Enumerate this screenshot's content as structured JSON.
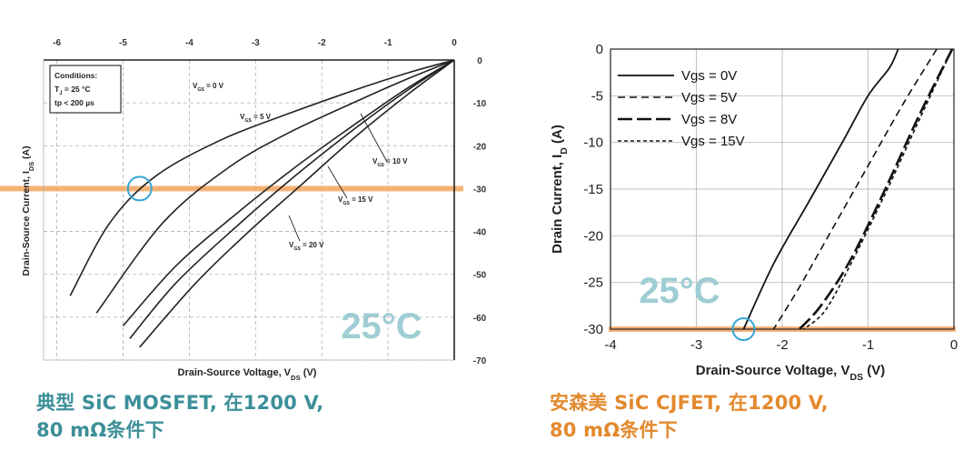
{
  "captions": {
    "left": [
      "典型 SiC MOSFET, 在1200 V,",
      "80 mΩ条件下"
    ],
    "right": [
      "安森美 SiC CJFET, 在1200 V,",
      "80 mΩ条件下"
    ]
  },
  "colors": {
    "left_caption": "#3c8f98",
    "right_caption": "#e3892d",
    "highlight_band": "#f4a65f",
    "marker_circle": "#36a6d6",
    "temperature_label": "#9fcdd4"
  },
  "chart_data": [
    {
      "type": "line",
      "xlabel": "Drain-Source Voltage, V",
      "xlabel_sub": "DS",
      "xlabel_suffix": " (V)",
      "ylabel": "Drain-Source Current, I",
      "ylabel_sub": "DS",
      "ylabel_suffix": " (A)",
      "xlim": [
        -6.2,
        0
      ],
      "ylim": [
        -70,
        0
      ],
      "x_ticks": [
        -6,
        -5,
        -4,
        -3,
        -2,
        -1,
        0
      ],
      "y_ticks": [
        0,
        -10,
        -20,
        -30,
        -40,
        -50,
        -60,
        -70
      ],
      "x_tick_position": "top",
      "y_tick_position": "right",
      "grid": true,
      "conditions": [
        "Conditions:",
        "T",
        "J",
        " = 25 °C",
        "tp < 200 µs"
      ],
      "temperature": "25°C",
      "highlight_y": -30,
      "marker": {
        "x": -4.75,
        "y": -30
      },
      "series": [
        {
          "label": "V",
          "label_sub": "GS",
          "label_value": " = 0 V",
          "x": [
            0,
            -0.7,
            -1.5,
            -2.5,
            -3.5,
            -4.5,
            -5.2,
            -5.8
          ],
          "y": [
            0,
            -3,
            -7,
            -12.5,
            -18.5,
            -27,
            -38,
            -55
          ]
        },
        {
          "label": "V",
          "label_sub": "GS",
          "label_value": " = 5 V",
          "x": [
            0,
            -0.8,
            -1.6,
            -2.5,
            -3.4,
            -4.4,
            -5.4
          ],
          "y": [
            0,
            -5,
            -10.5,
            -17,
            -25,
            -38,
            -59
          ]
        },
        {
          "label": "V",
          "label_sub": "GS",
          "label_value": " = 10 V",
          "x": [
            0,
            -0.7,
            -1.5,
            -2.4,
            -3.3,
            -4.2,
            -5.0
          ],
          "y": [
            0,
            -6.5,
            -15,
            -25,
            -36,
            -48,
            -62
          ]
        },
        {
          "label": "V",
          "label_sub": "GS",
          "label_value": " = 15 V",
          "x": [
            0,
            -0.7,
            -1.5,
            -2.4,
            -3.3,
            -4.2,
            -4.9
          ],
          "y": [
            0,
            -7,
            -16,
            -27,
            -39,
            -52,
            -65
          ]
        },
        {
          "label": "V",
          "label_sub": "GS",
          "label_value": " = 20 V",
          "x": [
            0,
            -0.7,
            -1.5,
            -2.3,
            -3.1,
            -3.9,
            -4.75
          ],
          "y": [
            0,
            -8,
            -18,
            -29,
            -40,
            -52,
            -67
          ]
        }
      ]
    },
    {
      "type": "line",
      "xlabel": "Drain-Source Voltage, V",
      "xlabel_sub": "DS",
      "xlabel_suffix": " (V)",
      "ylabel": "Drain Current, I",
      "ylabel_sub": "D",
      "ylabel_suffix": " (A)",
      "xlim": [
        -4,
        0
      ],
      "ylim": [
        -30,
        0
      ],
      "x_ticks": [
        -4,
        -3,
        -2,
        -1,
        0
      ],
      "y_ticks": [
        0,
        -5,
        -10,
        -15,
        -20,
        -25,
        -30
      ],
      "grid": true,
      "legend_position": "top-left",
      "temperature": "25°C",
      "highlight_y": -30,
      "marker": {
        "x": -2.45,
        "y": -30
      },
      "series": [
        {
          "name": "Vgs = 0V",
          "style": "solid",
          "x": [
            -0.65,
            -0.75,
            -1.0,
            -1.3,
            -1.7,
            -2.1,
            -2.45
          ],
          "y": [
            0,
            -2,
            -5,
            -10,
            -16.5,
            -23,
            -30
          ]
        },
        {
          "name": "Vgs = 5V",
          "style": "dash",
          "x": [
            -0.2,
            -0.6,
            -1.0,
            -1.4,
            -1.8,
            -2.1
          ],
          "y": [
            0,
            -6,
            -12.5,
            -19,
            -25.5,
            -30
          ]
        },
        {
          "name": "Vgs = 8V",
          "style": "longdash",
          "x": [
            -0.02,
            -0.4,
            -0.8,
            -1.2,
            -1.55,
            -1.8
          ],
          "y": [
            0,
            -7,
            -15,
            -22.5,
            -27.5,
            -30
          ]
        },
        {
          "name": "Vgs = 15V",
          "style": "shortdash",
          "x": [
            -0.02,
            -0.4,
            -0.8,
            -1.2,
            -1.5,
            -1.75
          ],
          "y": [
            0,
            -7.5,
            -15.5,
            -23,
            -28,
            -30
          ]
        }
      ]
    }
  ]
}
